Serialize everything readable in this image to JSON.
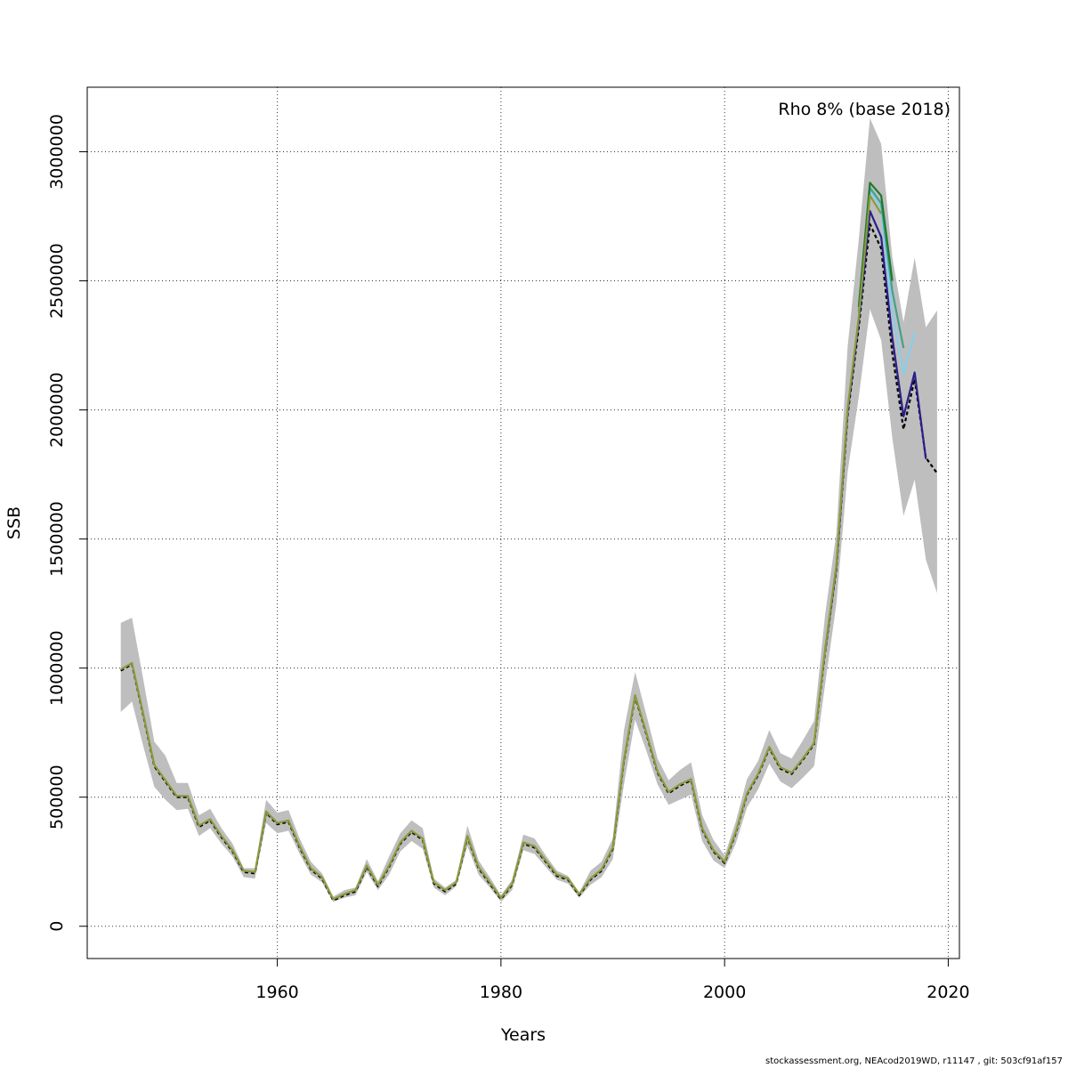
{
  "chart_data": {
    "type": "line",
    "title": "",
    "xlabel": "Years",
    "ylabel": "SSB",
    "xlim": [
      1943,
      2021
    ],
    "ylim": [
      -125000,
      3250000
    ],
    "x_ticks": [
      1960,
      1980,
      2000,
      2020
    ],
    "y_ticks": [
      0,
      500000,
      1000000,
      1500000,
      2000000,
      2500000,
      3000000
    ],
    "grid": true,
    "annotation": "Rho 8% (base 2018)",
    "band_color": "#bebebe",
    "confidence_band": {
      "x": [
        1946,
        1947,
        1948,
        1949,
        1950,
        1951,
        1952,
        1953,
        1954,
        1955,
        1956,
        1957,
        1958,
        1959,
        1960,
        1961,
        1962,
        1963,
        1964,
        1965,
        1966,
        1967,
        1968,
        1969,
        1970,
        1971,
        1972,
        1973,
        1974,
        1975,
        1976,
        1977,
        1978,
        1979,
        1980,
        1981,
        1982,
        1983,
        1984,
        1985,
        1986,
        1987,
        1988,
        1989,
        1990,
        1991,
        1992,
        1993,
        1994,
        1995,
        1996,
        1997,
        1998,
        1999,
        2000,
        2001,
        2002,
        2003,
        2004,
        2005,
        2006,
        2007,
        2008,
        2009,
        2010,
        2011,
        2012,
        2013,
        2014,
        2015,
        2016,
        2017,
        2018,
        2019
      ],
      "low": [
        830000,
        870000,
        700000,
        540000,
        490000,
        450000,
        455000,
        350000,
        380000,
        320000,
        270000,
        190000,
        185000,
        400000,
        360000,
        370000,
        280000,
        200000,
        170000,
        95000,
        110000,
        120000,
        210000,
        140000,
        200000,
        290000,
        330000,
        300000,
        150000,
        120000,
        155000,
        310000,
        200000,
        150000,
        95000,
        140000,
        295000,
        280000,
        230000,
        180000,
        165000,
        110000,
        160000,
        190000,
        260000,
        550000,
        800000,
        680000,
        550000,
        470000,
        490000,
        510000,
        330000,
        255000,
        225000,
        320000,
        460000,
        530000,
        630000,
        560000,
        535000,
        575000,
        620000,
        940000,
        1250000,
        1760000,
        2050000,
        2390000,
        2270000,
        1890000,
        1590000,
        1730000,
        1420000,
        1290000
      ],
      "high": [
        1175000,
        1195000,
        960000,
        715000,
        660000,
        555000,
        555000,
        430000,
        455000,
        380000,
        320000,
        225000,
        225000,
        490000,
        440000,
        450000,
        340000,
        250000,
        205000,
        115000,
        140000,
        150000,
        260000,
        175000,
        270000,
        360000,
        410000,
        380000,
        185000,
        150000,
        180000,
        390000,
        255000,
        190000,
        120000,
        180000,
        355000,
        340000,
        275000,
        215000,
        195000,
        130000,
        215000,
        250000,
        340000,
        760000,
        985000,
        820000,
        650000,
        565000,
        605000,
        635000,
        430000,
        335000,
        275000,
        405000,
        570000,
        640000,
        760000,
        670000,
        650000,
        720000,
        795000,
        1210000,
        1525000,
        2245000,
        2660000,
        3130000,
        3030000,
        2590000,
        2340000,
        2590000,
        2320000,
        2385000
      ]
    },
    "series": [
      {
        "name": "",
        "color": "#000000",
        "dashed": true,
        "x": [
          1946,
          1947,
          1948,
          1949,
          1950,
          1951,
          1952,
          1953,
          1954,
          1955,
          1956,
          1957,
          1958,
          1959,
          1960,
          1961,
          1962,
          1963,
          1964,
          1965,
          1966,
          1967,
          1968,
          1969,
          1970,
          1971,
          1972,
          1973,
          1974,
          1975,
          1976,
          1977,
          1978,
          1979,
          1980,
          1981,
          1982,
          1983,
          1984,
          1985,
          1986,
          1987,
          1988,
          1989,
          1990,
          1991,
          1992,
          1993,
          1994,
          1995,
          1996,
          1997,
          1998,
          1999,
          2000,
          2001,
          2002,
          2003,
          2004,
          2005,
          2006,
          2007,
          2008,
          2009,
          2010,
          2011,
          2012,
          2013,
          2014,
          2015,
          2016,
          2017,
          2018,
          2019
        ],
        "values": [
          990000,
          1015000,
          820000,
          620000,
          560000,
          500000,
          500000,
          385000,
          410000,
          345000,
          290000,
          210000,
          205000,
          440000,
          395000,
          405000,
          305000,
          220000,
          185000,
          100000,
          120000,
          135000,
          230000,
          155000,
          230000,
          320000,
          365000,
          335000,
          165000,
          135000,
          165000,
          345000,
          225000,
          165000,
          105000,
          160000,
          320000,
          305000,
          250000,
          195000,
          180000,
          120000,
          180000,
          215000,
          300000,
          640000,
          890000,
          745000,
          595000,
          515000,
          545000,
          565000,
          375000,
          290000,
          245000,
          360000,
          510000,
          585000,
          690000,
          610000,
          590000,
          645000,
          705000,
          1065000,
          1385000,
          1980000,
          2320000,
          2720000,
          2625000,
          2220000,
          1925000,
          2120000,
          1815000,
          1755000
        ]
      },
      {
        "name": "",
        "color": "#2b1f8a",
        "dashed": false,
        "x": [
          2009,
          2010,
          2011,
          2012,
          2013,
          2014,
          2015,
          2016,
          2017,
          2018
        ],
        "values": [
          1070000,
          1395000,
          1995000,
          2345000,
          2770000,
          2670000,
          2280000,
          1975000,
          2145000,
          1810000
        ]
      },
      {
        "name": "",
        "color": "#87ceeb",
        "dashed": false,
        "x": [
          2012,
          2013,
          2014,
          2015,
          2016,
          2017
        ],
        "values": [
          2360000,
          2850000,
          2780000,
          2380000,
          2140000,
          2300000
        ]
      },
      {
        "name": "",
        "color": "#45a08a",
        "dashed": false,
        "x": [
          2012,
          2013,
          2014,
          2015,
          2016
        ],
        "values": [
          2380000,
          2860000,
          2800000,
          2460000,
          2240000
        ]
      },
      {
        "name": "",
        "color": "#1e7a2e",
        "dashed": false,
        "x": [
          2012,
          2013,
          2014,
          2015
        ],
        "values": [
          2400000,
          2880000,
          2830000,
          2500000
        ]
      },
      {
        "name": "",
        "color": "#8a9a3a",
        "dashed": false,
        "x": [
          1946,
          1947,
          1948,
          1949,
          1950,
          1951,
          1952,
          1953,
          1954,
          1955,
          1956,
          1957,
          1958,
          1959,
          1960,
          1961,
          1962,
          1963,
          1964,
          1965,
          1966,
          1967,
          1968,
          1969,
          1970,
          1971,
          1972,
          1973,
          1974,
          1975,
          1976,
          1977,
          1978,
          1979,
          1980,
          1981,
          1982,
          1983,
          1984,
          1985,
          1986,
          1987,
          1988,
          1989,
          1990,
          1991,
          1992,
          1993,
          1994,
          1995,
          1996,
          1997,
          1998,
          1999,
          2000,
          2001,
          2002,
          2003,
          2004,
          2005,
          2006,
          2007,
          2008,
          2009,
          2010,
          2011,
          2012,
          2013,
          2014
        ],
        "values": [
          995000,
          1020000,
          825000,
          625000,
          565000,
          505000,
          505000,
          390000,
          415000,
          350000,
          295000,
          215000,
          210000,
          445000,
          400000,
          410000,
          310000,
          225000,
          190000,
          105000,
          125000,
          140000,
          235000,
          160000,
          235000,
          325000,
          370000,
          340000,
          170000,
          140000,
          170000,
          350000,
          230000,
          170000,
          110000,
          165000,
          325000,
          310000,
          255000,
          200000,
          185000,
          125000,
          185000,
          220000,
          305000,
          645000,
          895000,
          750000,
          600000,
          520000,
          550000,
          570000,
          380000,
          295000,
          250000,
          365000,
          515000,
          590000,
          695000,
          615000,
          595000,
          650000,
          710000,
          1075000,
          1400000,
          2005000,
          2360000,
          2830000,
          2760000
        ]
      }
    ]
  },
  "footer": "stockassessment.org, NEAcod2019WD, r11147 , git: 503cf91af157"
}
